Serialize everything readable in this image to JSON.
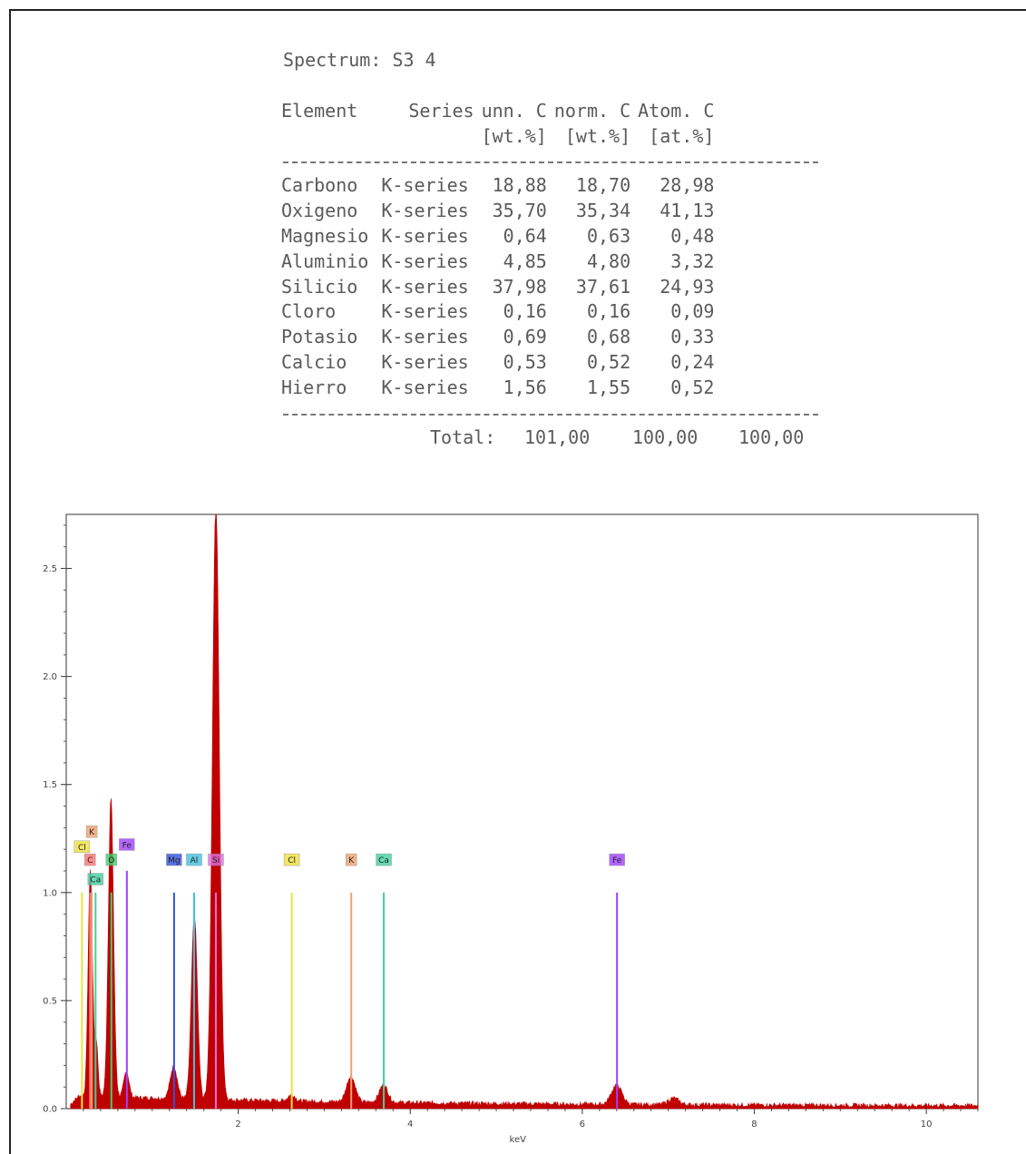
{
  "report": {
    "title": "Spectrum: S3 4",
    "headers": {
      "element": "Element",
      "series": "Series",
      "unn": "unn. C",
      "norm": "norm. C",
      "atom": "Atom. C",
      "unn_unit": "[wt.%]",
      "norm_unit": "[wt.%]",
      "atom_unit": "[at.%]"
    },
    "rows": [
      {
        "element": "Carbono",
        "series": "K-series",
        "unn": "18,88",
        "norm": "18,70",
        "atom": "28,98"
      },
      {
        "element": "Oxigeno",
        "series": "K-series",
        "unn": "35,70",
        "norm": "35,34",
        "atom": "41,13"
      },
      {
        "element": "Magnesio",
        "series": "K-series",
        "unn": "0,64",
        "norm": "0,63",
        "atom": "0,48"
      },
      {
        "element": "Aluminio",
        "series": "K-series",
        "unn": "4,85",
        "norm": "4,80",
        "atom": "3,32"
      },
      {
        "element": "Silicio",
        "series": "K-series",
        "unn": "37,98",
        "norm": "37,61",
        "atom": "24,93"
      },
      {
        "element": "Cloro",
        "series": "K-series",
        "unn": "0,16",
        "norm": "0,16",
        "atom": "0,09"
      },
      {
        "element": "Potasio",
        "series": "K-series",
        "unn": "0,69",
        "norm": "0,68",
        "atom": "0,33"
      },
      {
        "element": "Calcio",
        "series": "K-series",
        "unn": "0,53",
        "norm": "0,52",
        "atom": "0,24"
      },
      {
        "element": "Hierro",
        "series": "K-series",
        "unn": "1,56",
        "norm": "1,55",
        "atom": "0,52"
      }
    ],
    "total_label": "Total:",
    "total_unn": "101,00",
    "total_norm": "100,00",
    "total_atom": "100,00"
  },
  "chart_data": {
    "type": "line",
    "xlabel": "keV",
    "ylabel": "",
    "xlim": [
      0,
      10.6
    ],
    "ylim": [
      0,
      2.75
    ],
    "x_ticks": [
      2,
      4,
      6,
      8,
      10
    ],
    "y_ticks": [
      "0.0",
      "0.5",
      "1.0",
      "1.5",
      "2.0",
      "2.5"
    ],
    "grid": false,
    "spectrum_color": "#c00000",
    "spectrum_peaks": [
      {
        "x": 0.28,
        "height": 1.05,
        "width": 0.025
      },
      {
        "x": 0.35,
        "height": 0.25,
        "width": 0.02
      },
      {
        "x": 0.52,
        "height": 1.38,
        "width": 0.03
      },
      {
        "x": 0.7,
        "height": 0.12,
        "width": 0.03
      },
      {
        "x": 1.25,
        "height": 0.15,
        "width": 0.04
      },
      {
        "x": 1.49,
        "height": 0.85,
        "width": 0.035
      },
      {
        "x": 1.74,
        "height": 2.75,
        "width": 0.04
      },
      {
        "x": 2.62,
        "height": 0.03,
        "width": 0.04
      },
      {
        "x": 3.31,
        "height": 0.12,
        "width": 0.05
      },
      {
        "x": 3.69,
        "height": 0.08,
        "width": 0.05
      },
      {
        "x": 6.4,
        "height": 0.09,
        "width": 0.06
      },
      {
        "x": 7.06,
        "height": 0.03,
        "width": 0.06
      }
    ],
    "element_markers": [
      {
        "element": "C",
        "x": 0.277,
        "color": "#ff7070",
        "height": 1.0,
        "label_y": 1.15
      },
      {
        "element": "Ca",
        "x": 0.341,
        "color": "#40d0a0",
        "height": 1.0,
        "label_y": 1.06
      },
      {
        "element": "K",
        "x": 0.297,
        "color": "#f0a070",
        "height": 1.0,
        "label_y": 1.28
      },
      {
        "element": "Cl",
        "x": 0.183,
        "color": "#f0e040",
        "height": 1.0,
        "label_y": 1.21
      },
      {
        "element": "O",
        "x": 0.525,
        "color": "#40d070",
        "height": 1.0,
        "label_y": 1.15
      },
      {
        "element": "Fe",
        "x": 0.705,
        "color": "#a040ff",
        "height": 1.1,
        "label_y": 1.22
      },
      {
        "element": "Mg",
        "x": 1.254,
        "color": "#3050e0",
        "height": 1.0,
        "label_y": 1.15
      },
      {
        "element": "Al",
        "x": 1.487,
        "color": "#40c0e0",
        "height": 1.0,
        "label_y": 1.15
      },
      {
        "element": "Si",
        "x": 1.74,
        "color": "#e070e0",
        "height": 1.0,
        "label_y": 1.15
      },
      {
        "element": "Cl",
        "x": 2.622,
        "color": "#f0e040",
        "height": 1.0,
        "label_y": 1.15
      },
      {
        "element": "K",
        "x": 3.314,
        "color": "#f0a070",
        "height": 1.0,
        "label_y": 1.15
      },
      {
        "element": "Ca",
        "x": 3.692,
        "color": "#40d0a0",
        "height": 1.0,
        "label_y": 1.15
      },
      {
        "element": "Fe",
        "x": 6.404,
        "color": "#a040ff",
        "height": 1.0,
        "label_y": 1.15
      }
    ]
  }
}
